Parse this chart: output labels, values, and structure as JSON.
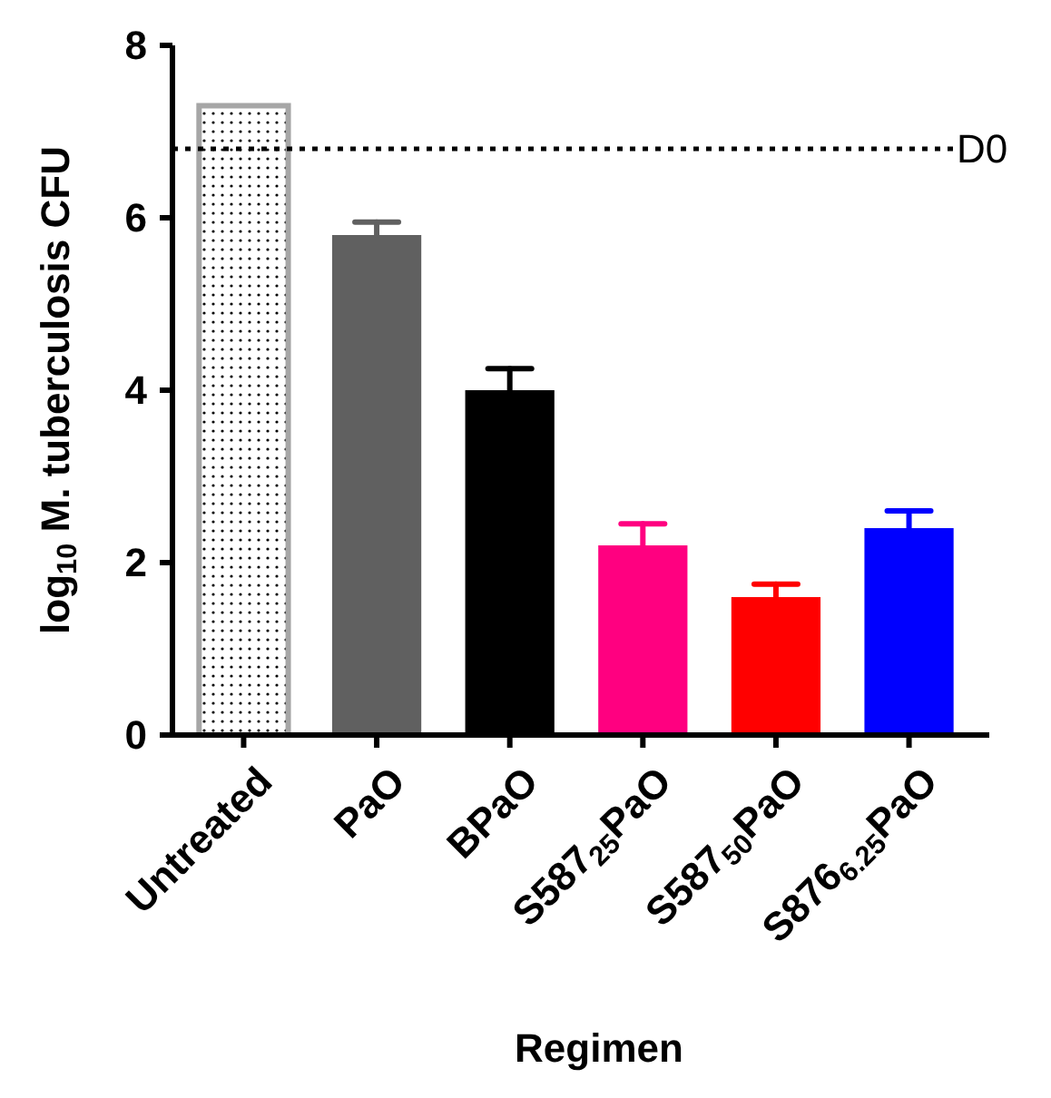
{
  "chart_data": {
    "type": "bar",
    "xlabel": "Regimen",
    "ylabel": "log$_{10}$ M. tuberculosis CFU",
    "categories": [
      "Untreated",
      "PaO",
      "BPaO",
      "S587$_{25}$PaO",
      "S587$_{50}$PaO",
      "S876$_{6.25}$PaO"
    ],
    "values": [
      7.3,
      5.8,
      4.0,
      2.2,
      1.6,
      2.4
    ],
    "colors": [
      "#a6a6a6",
      "#606060",
      "#000000",
      "#ff0080",
      "#ff0000",
      "#0000ff"
    ],
    "errors": [
      null,
      [
        5.8,
        5.95
      ],
      [
        4.0,
        4.25
      ],
      [
        2.2,
        2.45
      ],
      [
        1.6,
        1.75
      ],
      [
        2.4,
        2.6
      ]
    ],
    "ylim": [
      0,
      8
    ],
    "yticks": [
      0,
      2,
      4,
      6,
      8
    ],
    "grid": false,
    "ref_lines": [
      {
        "axis": "y",
        "value": 6.8,
        "label": "D0",
        "color": "#000000",
        "line_style": "dotted"
      }
    ]
  }
}
